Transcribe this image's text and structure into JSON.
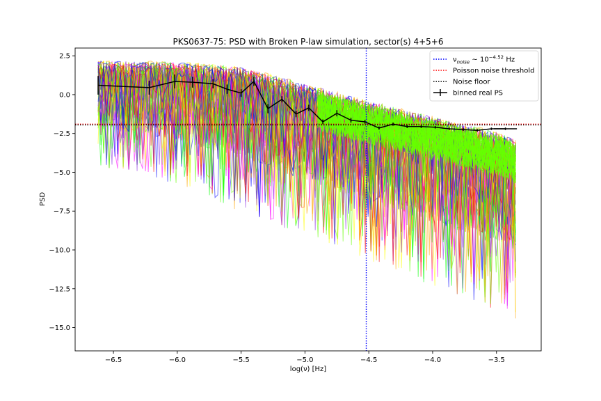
{
  "chart_data": {
    "type": "line",
    "title": "PKS0637-75: PSD with Broken P-law simulation, sector(s) 4+5+6",
    "xlabel": "log(ν) [Hz]",
    "ylabel": "PSD",
    "xlim": [
      -6.8,
      -3.15
    ],
    "ylim": [
      -16.5,
      3.0
    ],
    "xticks": [
      -6.5,
      -6.0,
      -5.5,
      -5.0,
      -4.5,
      -4.0,
      -3.5
    ],
    "xtick_labels": [
      "−6.5",
      "−6.0",
      "−5.5",
      "−5.0",
      "−4.5",
      "−4.0",
      "−3.5"
    ],
    "yticks": [
      2.5,
      0.0,
      -2.5,
      -5.0,
      -7.5,
      -10.0,
      -12.5,
      -15.0
    ],
    "ytick_labels": [
      "2.5",
      "0.0",
      "−2.5",
      "−5.0",
      "−7.5",
      "−10.0",
      "−12.5",
      "−15.0"
    ],
    "grid": false,
    "legend_position": "top-right",
    "noise_frequency": {
      "x": -4.52,
      "color": "#0000ff",
      "style": "dotted"
    },
    "poisson_noise_threshold": {
      "y": -1.9,
      "color": "#ff0000",
      "style": "dotted"
    },
    "noise_floor": {
      "y": -1.95,
      "color": "#000000",
      "style": "dotted"
    },
    "simulation_envelope": {
      "x": [
        -6.62,
        -6.0,
        -5.5,
        -5.0,
        -4.5,
        -4.0,
        -3.5,
        -3.35
      ],
      "upper": [
        2.0,
        1.9,
        1.6,
        0.5,
        -0.6,
        -1.6,
        -2.6,
        -3.1
      ],
      "lower_typical": [
        -3.5,
        -4.5,
        -6.0,
        -7.5,
        -9.0,
        -10.5,
        -12.0,
        -12.5
      ],
      "colors": [
        "#ff0000",
        "#66ff00",
        "#ffa500",
        "#0000ff",
        "#ff00ff",
        "#ffff00",
        "#8a2be2",
        "#00ff00"
      ]
    },
    "series": [
      {
        "name": "binned real PS",
        "color": "#000000",
        "x": [
          -6.62,
          -6.22,
          -6.02,
          -5.88,
          -5.72,
          -5.61,
          -5.5,
          -5.4,
          -5.29,
          -5.18,
          -5.07,
          -4.97,
          -4.86,
          -4.75,
          -4.64,
          -4.53,
          -4.42,
          -4.31,
          -4.2,
          -4.09,
          -3.98,
          -3.87,
          -3.76,
          -3.65,
          -3.54,
          -3.43
        ],
        "y": [
          0.6,
          0.45,
          0.85,
          0.8,
          0.7,
          0.35,
          0.1,
          0.85,
          -0.9,
          -0.3,
          -1.25,
          -0.85,
          -1.75,
          -1.2,
          -1.65,
          -1.75,
          -2.15,
          -1.9,
          -2.05,
          -2.05,
          -2.1,
          -2.2,
          -2.25,
          -2.3,
          -2.2,
          -2.2
        ],
        "yerr": [
          0.6,
          0.45,
          0.45,
          0.35,
          0.3,
          0.3,
          0.25,
          0.3,
          0.3,
          0.2,
          0.2,
          0.2,
          0.15,
          0.2,
          0.15,
          0.12,
          0.1,
          0.1,
          0.1,
          0.1,
          0.08,
          0.08,
          0.08,
          0.08,
          0.08,
          0.08
        ],
        "xerr_last": 0.09
      }
    ],
    "legend": [
      {
        "label_prefix": "ν",
        "label_sub": "noise",
        "label_mid": " ~ 10",
        "label_sup": "−4.52",
        "label_suffix": " Hz",
        "color": "#0000ff",
        "style": "dotted"
      },
      {
        "label": "Poisson noise threshold",
        "color": "#ff0000",
        "style": "dotted"
      },
      {
        "label": "Noise floor",
        "color": "#000000",
        "style": "dotted"
      },
      {
        "label": "binned real PS",
        "color": "#000000",
        "style": "errorbar"
      }
    ]
  }
}
